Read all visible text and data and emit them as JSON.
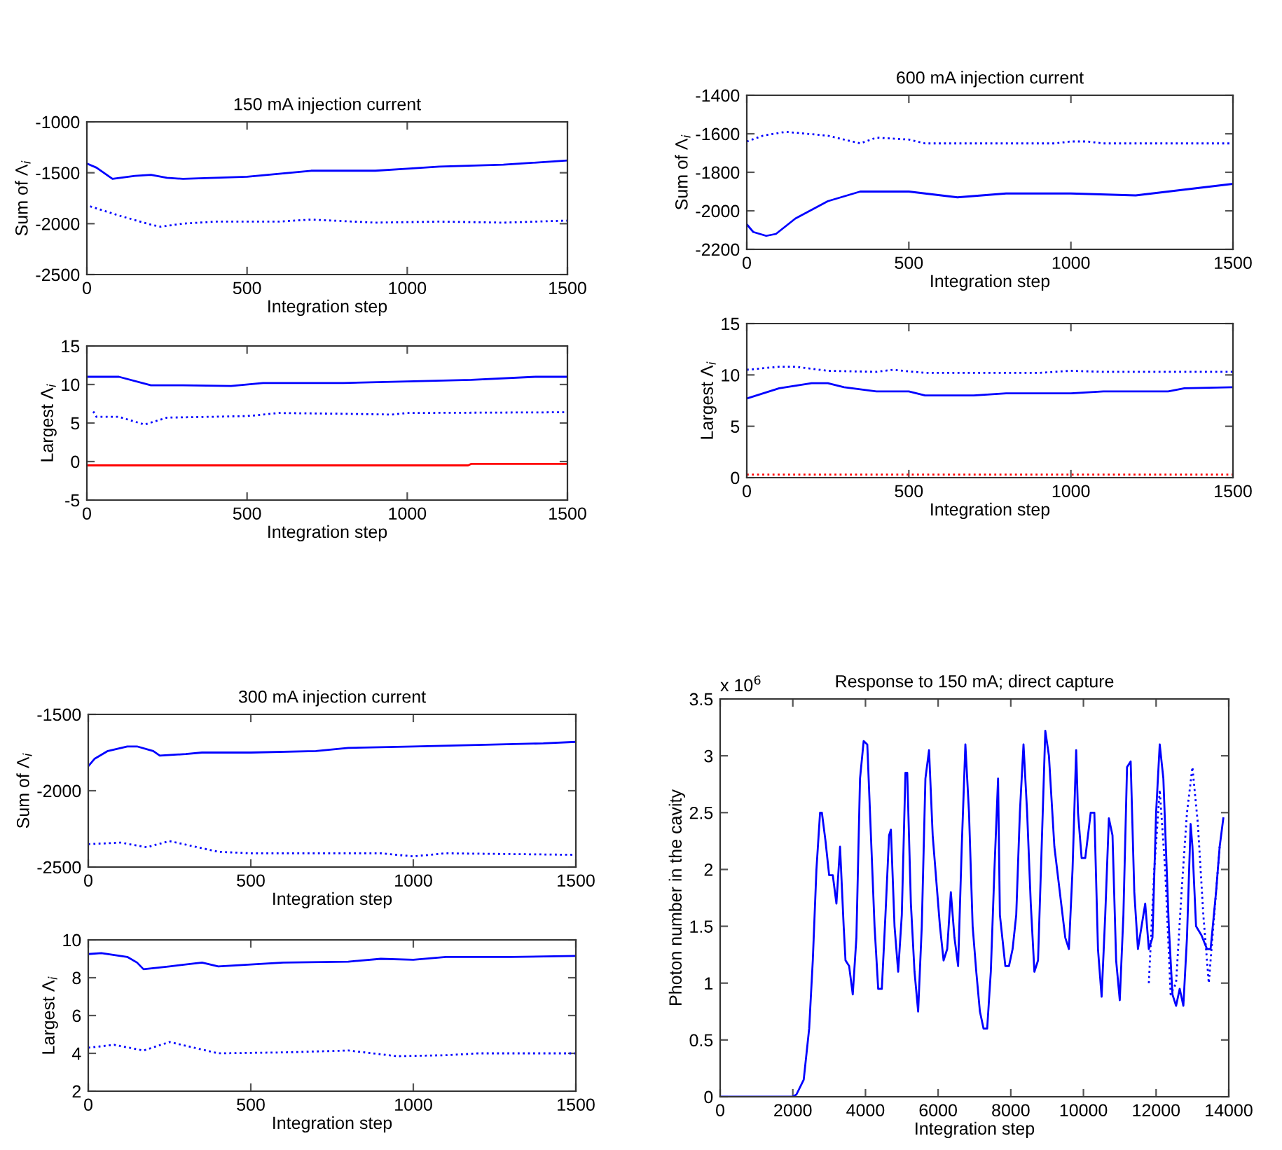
{
  "chart_data": [
    {
      "type": "line",
      "title": "150 mA injection current",
      "xlabel": "Integration step",
      "ylabel": "Sum of Λ$_{i}$",
      "xlim": [
        0,
        1500
      ],
      "xticks": [
        0,
        500,
        1000,
        1500
      ],
      "ylim": [
        -2500,
        -1000
      ],
      "yticks": [
        -2500,
        -2000,
        -1500,
        -1000
      ],
      "grid": false,
      "series": [
        {
          "color": "#0000ff",
          "line_style": "solid",
          "x": [
            0,
            30,
            80,
            150,
            200,
            250,
            300,
            400,
            500,
            600,
            700,
            900,
            1000,
            1100,
            1300,
            1500
          ],
          "values": [
            -1410,
            -1450,
            -1560,
            -1530,
            -1520,
            -1550,
            -1560,
            -1550,
            -1540,
            -1510,
            -1480,
            -1480,
            -1460,
            -1440,
            -1420,
            -1380
          ]
        },
        {
          "color": "#0000ff",
          "line_style": "dotted",
          "x": [
            10,
            100,
            200,
            230,
            300,
            400,
            600,
            700,
            900,
            1100,
            1300,
            1500
          ],
          "values": [
            -1830,
            -1920,
            -2010,
            -2030,
            -2000,
            -1980,
            -1980,
            -1960,
            -1990,
            -1980,
            -1990,
            -1970
          ]
        }
      ]
    },
    {
      "type": "line",
      "xlabel": "Integration step",
      "ylabel": "Largest Λ$_{i}$",
      "xlim": [
        0,
        1500
      ],
      "xticks": [
        0,
        500,
        1000,
        1500
      ],
      "ylim": [
        -5,
        15
      ],
      "yticks": [
        -5,
        0,
        5,
        10,
        15
      ],
      "grid": false,
      "series": [
        {
          "color": "#0000ff",
          "line_style": "solid",
          "x": [
            0,
            100,
            200,
            300,
            450,
            550,
            800,
            1000,
            1200,
            1400,
            1500
          ],
          "values": [
            11,
            11,
            9.9,
            9.9,
            9.8,
            10.2,
            10.2,
            10.4,
            10.6,
            11,
            11
          ]
        },
        {
          "color": "#0000ff",
          "line_style": "dotted",
          "x": [
            20,
            30,
            100,
            180,
            250,
            500,
            600,
            800,
            950,
            1000,
            1500
          ],
          "values": [
            6.5,
            5.8,
            5.8,
            4.8,
            5.7,
            5.9,
            6.3,
            6.2,
            6.1,
            6.3,
            6.4
          ]
        },
        {
          "color": "#ff0000",
          "line_style": "solid",
          "x": [
            0,
            1190,
            1200,
            1500
          ],
          "values": [
            -0.5,
            -0.5,
            -0.3,
            -0.3
          ]
        }
      ]
    },
    {
      "type": "line",
      "title": "600 mA injection current",
      "xlabel": "Integration step",
      "ylabel": "Sum of Λ$_{i}$",
      "xlim": [
        0,
        1500
      ],
      "xticks": [
        0,
        500,
        1000,
        1500
      ],
      "ylim": [
        -2200,
        -1400
      ],
      "yticks": [
        -2200,
        -2000,
        -1800,
        -1600,
        -1400
      ],
      "grid": false,
      "series": [
        {
          "color": "#0000ff",
          "line_style": "solid",
          "x": [
            0,
            20,
            60,
            90,
            150,
            250,
            350,
            500,
            650,
            800,
            1000,
            1200,
            1400,
            1500
          ],
          "values": [
            -2070,
            -2110,
            -2130,
            -2120,
            -2040,
            -1950,
            -1900,
            -1900,
            -1930,
            -1910,
            -1910,
            -1920,
            -1880,
            -1860
          ]
        },
        {
          "color": "#0000ff",
          "line_style": "dotted",
          "x": [
            0,
            50,
            120,
            250,
            350,
            400,
            500,
            550,
            800,
            950,
            1000,
            1050,
            1100,
            1500
          ],
          "values": [
            -1640,
            -1610,
            -1590,
            -1610,
            -1650,
            -1620,
            -1630,
            -1650,
            -1650,
            -1650,
            -1640,
            -1640,
            -1650,
            -1650
          ]
        }
      ]
    },
    {
      "type": "line",
      "xlabel": "Integration step",
      "ylabel": "Largest Λ$_{i}$",
      "xlim": [
        0,
        1500
      ],
      "xticks": [
        0,
        500,
        1000,
        1500
      ],
      "ylim": [
        0,
        15
      ],
      "yticks": [
        0,
        5,
        10,
        15
      ],
      "grid": false,
      "series": [
        {
          "color": "#0000ff",
          "line_style": "solid",
          "x": [
            0,
            100,
            200,
            250,
            300,
            400,
            500,
            550,
            700,
            800,
            1000,
            1100,
            1300,
            1350,
            1500
          ],
          "values": [
            7.7,
            8.7,
            9.2,
            9.2,
            8.8,
            8.4,
            8.4,
            8.0,
            8.0,
            8.2,
            8.2,
            8.4,
            8.4,
            8.7,
            8.8
          ]
        },
        {
          "color": "#0000ff",
          "line_style": "dotted",
          "x": [
            0,
            100,
            150,
            250,
            400,
            450,
            550,
            900,
            1000,
            1100,
            1500
          ],
          "values": [
            10.5,
            10.8,
            10.8,
            10.4,
            10.3,
            10.5,
            10.2,
            10.2,
            10.4,
            10.3,
            10.3
          ]
        },
        {
          "color": "#ff0000",
          "line_style": "dotted",
          "x": [
            0,
            1500
          ],
          "values": [
            0.3,
            0.3
          ]
        }
      ]
    },
    {
      "type": "line",
      "title": "300 mA injection current",
      "xlabel": "Integration step",
      "ylabel": "Sum of Λ$_{i}$",
      "xlim": [
        0,
        1500
      ],
      "xticks": [
        0,
        500,
        1000,
        1500
      ],
      "ylim": [
        -2500,
        -1500
      ],
      "yticks": [
        -2500,
        -2000,
        -1500
      ],
      "grid": false,
      "series": [
        {
          "color": "#0000ff",
          "line_style": "solid",
          "x": [
            0,
            20,
            60,
            120,
            150,
            200,
            220,
            300,
            350,
            500,
            700,
            800,
            1000,
            1200,
            1400,
            1500
          ],
          "values": [
            -1840,
            -1790,
            -1740,
            -1710,
            -1710,
            -1740,
            -1770,
            -1760,
            -1750,
            -1750,
            -1740,
            -1720,
            -1710,
            -1700,
            -1690,
            -1680
          ]
        },
        {
          "color": "#0000ff",
          "line_style": "dotted",
          "x": [
            0,
            100,
            180,
            250,
            400,
            500,
            700,
            900,
            1000,
            1100,
            1500
          ],
          "values": [
            -2350,
            -2340,
            -2370,
            -2330,
            -2400,
            -2410,
            -2410,
            -2410,
            -2430,
            -2410,
            -2420
          ]
        }
      ]
    },
    {
      "type": "line",
      "xlabel": "Integration step",
      "ylabel": "Largest Λ$_{i}$",
      "xlim": [
        0,
        1500
      ],
      "xticks": [
        0,
        500,
        1000,
        1500
      ],
      "ylim": [
        2,
        10
      ],
      "yticks": [
        2,
        4,
        6,
        8,
        10
      ],
      "grid": false,
      "series": [
        {
          "color": "#0000ff",
          "line_style": "solid",
          "x": [
            0,
            40,
            120,
            150,
            170,
            250,
            350,
            400,
            500,
            600,
            800,
            900,
            1000,
            1100,
            1300,
            1500
          ],
          "values": [
            9.25,
            9.3,
            9.1,
            8.8,
            8.45,
            8.6,
            8.8,
            8.6,
            8.7,
            8.8,
            8.85,
            9.0,
            8.95,
            9.1,
            9.1,
            9.15
          ]
        },
        {
          "color": "#0000ff",
          "line_style": "dotted",
          "x": [
            0,
            80,
            170,
            250,
            300,
            400,
            600,
            800,
            950,
            1100,
            1200,
            1500
          ],
          "values": [
            4.3,
            4.45,
            4.15,
            4.6,
            4.4,
            4.0,
            4.05,
            4.15,
            3.85,
            3.9,
            4.0,
            4.0
          ]
        }
      ]
    },
    {
      "type": "line",
      "title": "Response to 150 mA; direct capture",
      "xlabel": "Integration step",
      "ylabel": "Photon number in the cavity",
      "annotations": [
        "x 10$^{6}$"
      ],
      "xlim": [
        0,
        14000
      ],
      "xticks": [
        0,
        2000,
        4000,
        6000,
        8000,
        10000,
        12000,
        14000
      ],
      "ylim": [
        0,
        3.5
      ],
      "yticks": [
        0,
        0.5,
        1,
        1.5,
        2,
        2.5,
        3,
        3.5
      ],
      "grid": false,
      "series": [
        {
          "color": "#0000ff",
          "line_style": "solid",
          "x": [
            0,
            2000,
            2100,
            2300,
            2450,
            2550,
            2650,
            2750,
            2800,
            2900,
            3000,
            3100,
            3200,
            3300,
            3400,
            3450,
            3550,
            3650,
            3750,
            3850,
            3950,
            4050,
            4150,
            4250,
            4350,
            4450,
            4550,
            4650,
            4700,
            4800,
            4900,
            5000,
            5100,
            5150,
            5250,
            5350,
            5450,
            5550,
            5650,
            5750,
            5850,
            5950,
            6050,
            6150,
            6250,
            6350,
            6450,
            6550,
            6650,
            6750,
            6850,
            6950,
            7050,
            7150,
            7250,
            7350,
            7450,
            7550,
            7650,
            7700,
            7850,
            7950,
            8050,
            8150,
            8250,
            8350,
            8450,
            8550,
            8650,
            8750,
            8850,
            8950,
            9050,
            9200,
            9350,
            9500,
            9600,
            9700,
            9800,
            9850,
            9950,
            10050,
            10200,
            10300,
            10400,
            10500,
            10600,
            10700,
            10800,
            10900,
            11000,
            11100,
            11200,
            11300,
            11400,
            11500,
            11600,
            11700,
            11800,
            11900,
            12000,
            12100,
            12200,
            12350,
            12450,
            12550,
            12650,
            12750,
            12850,
            12950,
            13000,
            13100,
            13250,
            13400,
            13500,
            13650,
            13750,
            13850
          ],
          "values": [
            0,
            0,
            0.02,
            0.15,
            0.6,
            1.2,
            2.0,
            2.5,
            2.5,
            2.25,
            1.95,
            1.95,
            1.7,
            2.2,
            1.5,
            1.2,
            1.15,
            0.9,
            1.4,
            2.8,
            3.13,
            3.1,
            2.3,
            1.5,
            0.95,
            0.95,
            1.6,
            2.3,
            2.35,
            1.5,
            1.1,
            1.6,
            2.85,
            2.85,
            1.7,
            1.1,
            0.75,
            1.5,
            2.8,
            3.05,
            2.3,
            1.9,
            1.5,
            1.2,
            1.3,
            1.8,
            1.4,
            1.15,
            2.2,
            3.1,
            2.5,
            1.5,
            1.1,
            0.75,
            0.6,
            0.6,
            1.1,
            2.0,
            2.8,
            1.6,
            1.15,
            1.15,
            1.3,
            1.6,
            2.5,
            3.1,
            2.5,
            1.7,
            1.1,
            1.2,
            2.2,
            3.22,
            3.0,
            2.2,
            1.8,
            1.4,
            1.3,
            2.0,
            3.05,
            2.5,
            2.1,
            2.1,
            2.5,
            2.5,
            1.3,
            0.88,
            1.6,
            2.45,
            2.3,
            1.2,
            0.85,
            1.6,
            2.9,
            2.95,
            1.8,
            1.3,
            1.5,
            1.7,
            1.3,
            1.4,
            2.5,
            3.1,
            2.8,
            1.5,
            0.9,
            0.8,
            0.95,
            0.8,
            1.4,
            2.4,
            2.2,
            1.5,
            1.42,
            1.3,
            1.3,
            1.8,
            2.2,
            2.45
          ]
        },
        {
          "color": "#0000ff",
          "line_style": "dotted",
          "x": [
            11800,
            11950,
            12100,
            12250,
            12400,
            12550,
            12700,
            12850,
            13000,
            13150,
            13300,
            13450,
            13600,
            13750
          ],
          "values": [
            1.0,
            2.0,
            2.7,
            2.0,
            0.9,
            1.0,
            1.8,
            2.5,
            2.9,
            2.4,
            1.6,
            1.0,
            1.6,
            2.2
          ]
        }
      ]
    }
  ]
}
